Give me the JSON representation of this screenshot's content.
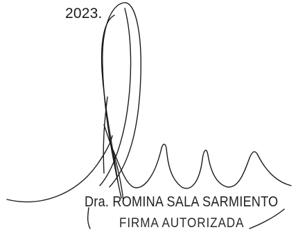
{
  "document": {
    "year_fragment": "2023.",
    "stamp": {
      "name": "Dra. ROMINA SALA SARMIENTO",
      "role": "FIRMA AUTORIZADA"
    },
    "ink_color": "#1a1a1a"
  }
}
